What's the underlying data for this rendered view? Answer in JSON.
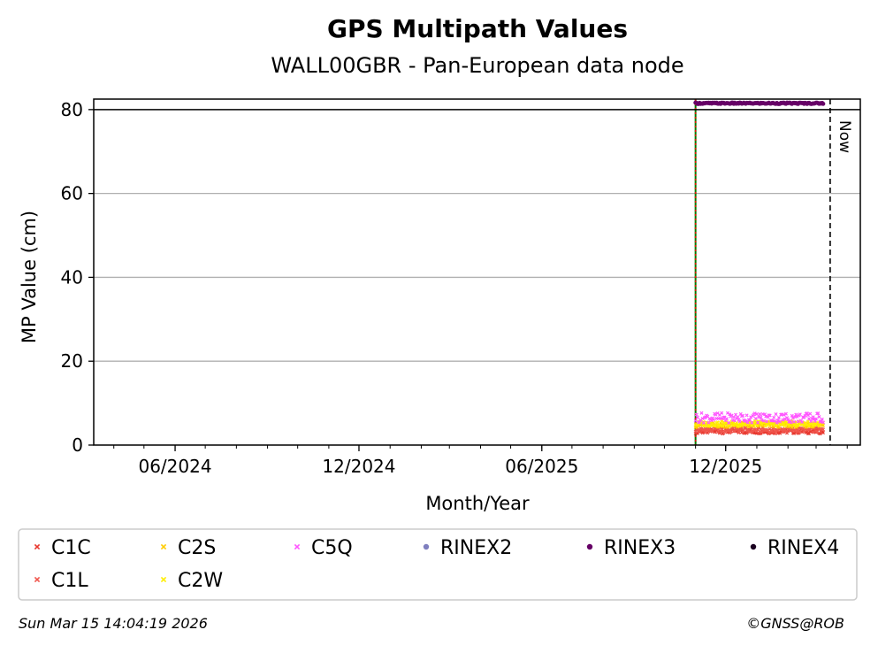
{
  "chart_data": {
    "type": "scatter",
    "title": "GPS Multipath Values",
    "subtitle": "WALL00GBR - Pan-European data node",
    "xlabel": "Month/Year",
    "ylabel": "MP Value (cm)",
    "ylim": [
      0,
      82.5
    ],
    "xlim": [
      "2024-03-12",
      "2026-04-14"
    ],
    "x_ticks": [
      "06/2024",
      "12/2024",
      "06/2025",
      "12/2025"
    ],
    "y_ticks": [
      0,
      20,
      40,
      60,
      80
    ],
    "grid": "horizontal",
    "threshold_line": 80,
    "now_label": "Now",
    "now_date": "2026-03-15",
    "start_date": "2025-11-01",
    "end_date": "2026-03-08",
    "series": [
      {
        "name": "C1C",
        "marker": "x",
        "color": "#e8362d",
        "base": 3.3
      },
      {
        "name": "C1L",
        "marker": "x",
        "color": "#f0564d",
        "base": 3.6
      },
      {
        "name": "C2S",
        "marker": "x",
        "color": "#ffcc00",
        "base": 4.8
      },
      {
        "name": "C2W",
        "marker": "x",
        "color": "#ffee00",
        "base": 5.1
      },
      {
        "name": "C5Q",
        "marker": "x",
        "color": "#ff55ff",
        "base": 6.5
      },
      {
        "name": "RINEX2",
        "marker": "dot",
        "color": "#7f7fbf",
        "base": null
      },
      {
        "name": "RINEX3",
        "marker": "dot",
        "color": "#660066",
        "base": 81.5
      },
      {
        "name": "RINEX4",
        "marker": "dot",
        "color": "#1a0020",
        "base": null
      }
    ]
  },
  "footer": {
    "timestamp": "Sun Mar 15 14:04:19 2026",
    "credit": "©GNSS@ROB"
  }
}
